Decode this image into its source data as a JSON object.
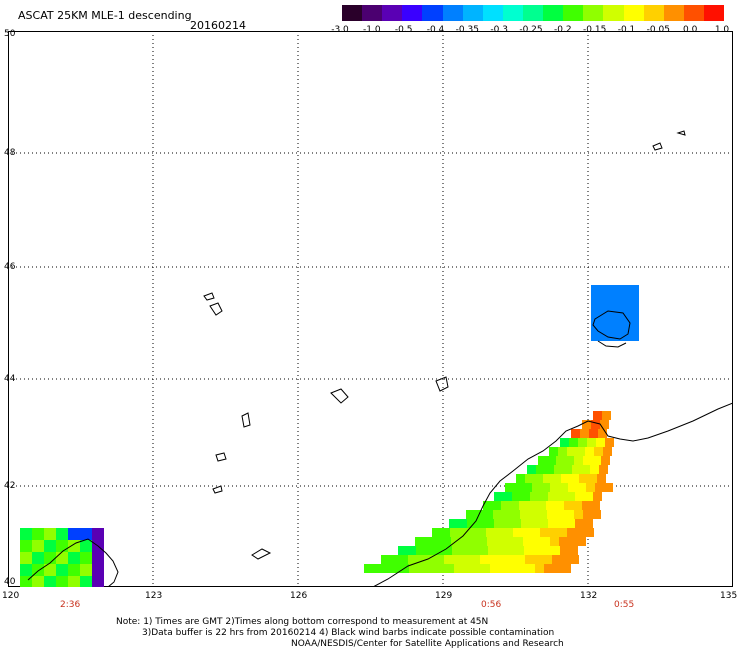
{
  "header": {
    "title": "ASCAT 25KM MLE-1 descending",
    "date": "20160214"
  },
  "colorbar": {
    "labels": [
      "-3.0",
      "-1.0",
      "-0.5",
      "-0.4",
      "-0.35",
      "-0.3",
      "-0.25",
      "-0.2",
      "-0.15",
      "-0.1",
      "-0.05",
      "0.0",
      "1.0"
    ],
    "colors": [
      "#2a002a",
      "#4b0070",
      "#5a00b4",
      "#3a00ff",
      "#0040ff",
      "#0080ff",
      "#00b4ff",
      "#00e0ff",
      "#00ffd0",
      "#00ff90",
      "#00ff40",
      "#40ff00",
      "#90ff00",
      "#d0ff00",
      "#ffff00",
      "#ffd000",
      "#ff9000",
      "#ff5000",
      "#ff1000"
    ]
  },
  "map": {
    "lat_labels": [
      "50",
      "48",
      "46",
      "44",
      "42",
      "40"
    ],
    "lon_labels": [
      "120",
      "123",
      "126",
      "129",
      "132",
      "135"
    ],
    "lat_range": [
      40,
      50
    ],
    "lon_range": [
      120,
      135
    ],
    "time_labels": [
      "2:36",
      "0:56",
      "0:55"
    ]
  },
  "footer": {
    "note_line1": "Note: 1) Times are GMT 2)Times along bottom correspond to measurement at 45N",
    "note_line2": "3)Data buffer is 22 hrs from 20160214 4) Black wind barbs indicate possible contamination",
    "credit": "NOAA/NESDIS/Center for Satellite Applications and Research"
  }
}
